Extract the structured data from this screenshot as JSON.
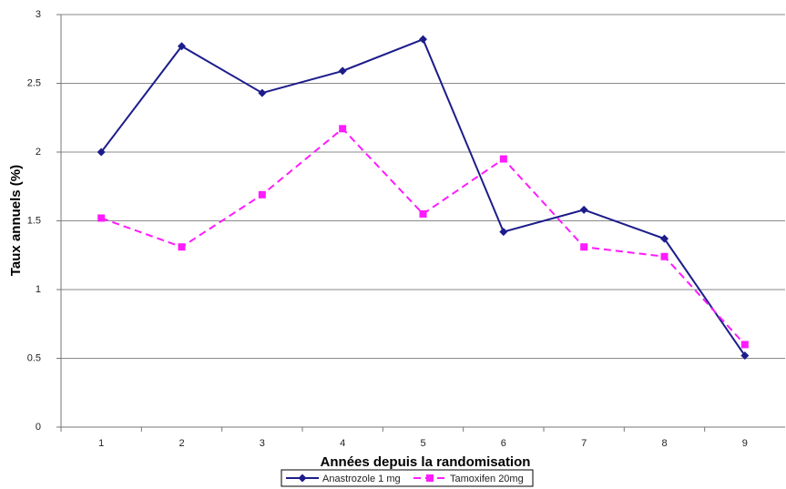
{
  "chart_data": {
    "type": "line",
    "x_label": "Années depuis la randomisation",
    "y_label": "Taux annuels (%)",
    "categories": [
      "1",
      "2",
      "3",
      "4",
      "5",
      "6",
      "7",
      "8",
      "9"
    ],
    "series": [
      {
        "name": "Anastrozole 1 mg",
        "color": "#1c1c8c",
        "dash": false,
        "marker": "diamond",
        "values": [
          2.0,
          2.77,
          2.43,
          2.59,
          2.82,
          1.42,
          1.58,
          1.37,
          0.52
        ]
      },
      {
        "name": "Tamoxifen 20mg",
        "color": "#ff1aff",
        "dash": true,
        "marker": "square",
        "values": [
          1.52,
          1.31,
          1.69,
          2.17,
          1.55,
          1.95,
          1.31,
          1.24,
          0.6
        ]
      }
    ],
    "ylim": [
      0,
      3
    ],
    "yticks": [
      0,
      0.5,
      1,
      1.5,
      2,
      2.5,
      3
    ],
    "grid": true,
    "legend": "bottom"
  }
}
